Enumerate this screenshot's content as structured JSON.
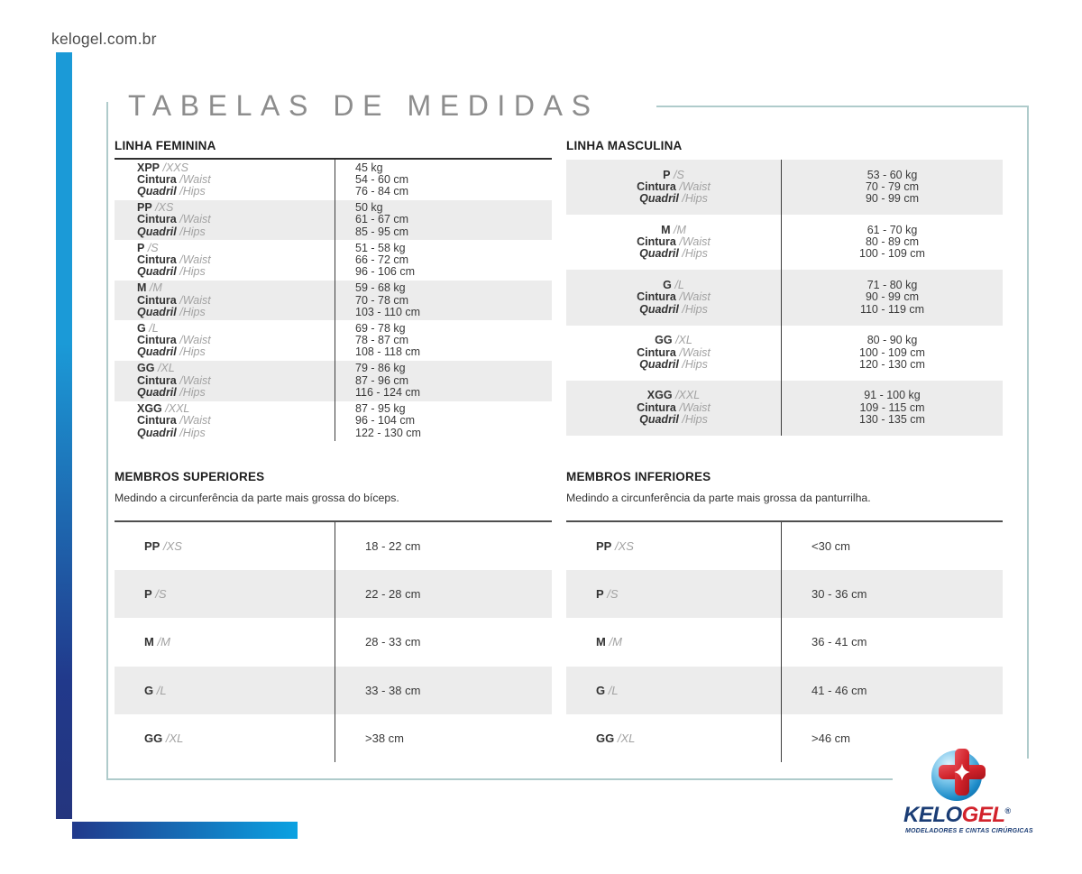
{
  "page": {
    "site_url": "kelogel.com.br",
    "title": "TABELAS DE MEDIDAS"
  },
  "measure_labels": {
    "waist_pt": "Cintura",
    "waist_en": "/Waist",
    "hips_pt": "Quadril",
    "hips_en": "/Hips"
  },
  "linha_feminina": {
    "header": "LINHA FEMININA",
    "rows": [
      {
        "size_pt": "XPP",
        "size_en": "/XXS",
        "weight": "45 kg",
        "waist": "54 - 60 cm",
        "hips": "76 - 84 cm"
      },
      {
        "size_pt": "PP",
        "size_en": "/XS",
        "weight": "50 kg",
        "waist": "61 - 67 cm",
        "hips": "85 - 95 cm"
      },
      {
        "size_pt": "P",
        "size_en": "/S",
        "weight": "51 - 58 kg",
        "waist": "66 - 72 cm",
        "hips": "96 - 106 cm"
      },
      {
        "size_pt": "M",
        "size_en": "/M",
        "weight": "59 - 68 kg",
        "waist": "70 - 78 cm",
        "hips": "103 - 110 cm"
      },
      {
        "size_pt": "G",
        "size_en": "/L",
        "weight": "69 - 78 kg",
        "waist": "78 - 87 cm",
        "hips": "108 - 118 cm"
      },
      {
        "size_pt": "GG",
        "size_en": "/XL",
        "weight": "79 - 86 kg",
        "waist": "87 - 96 cm",
        "hips": "116 - 124 cm"
      },
      {
        "size_pt": "XGG",
        "size_en": "/XXL",
        "weight": "87 - 95 kg",
        "waist": "96 - 104 cm",
        "hips": "122 - 130 cm"
      }
    ]
  },
  "linha_masculina": {
    "header": "LINHA MASCULINA",
    "rows": [
      {
        "size_pt": "P",
        "size_en": "/S",
        "weight": "53 - 60 kg",
        "waist": "70 - 79 cm",
        "hips": "90 - 99 cm"
      },
      {
        "size_pt": "M",
        "size_en": "/M",
        "weight": "61 - 70 kg",
        "waist": "80 - 89 cm",
        "hips": "100 - 109 cm"
      },
      {
        "size_pt": "G",
        "size_en": "/L",
        "weight": "71 - 80 kg",
        "waist": "90 - 99 cm",
        "hips": "110 - 119 cm"
      },
      {
        "size_pt": "GG",
        "size_en": "/XL",
        "weight": "80 - 90 kg",
        "waist": "100 - 109 cm",
        "hips": "120 - 130 cm"
      },
      {
        "size_pt": "XGG",
        "size_en": "/XXL",
        "weight": "91 - 100 kg",
        "waist": "109 - 115 cm",
        "hips": "130 - 135 cm"
      }
    ]
  },
  "membros_superiores": {
    "header": "MEMBROS SUPERIORES",
    "description": "Medindo a circunferência da parte mais grossa do bíceps.",
    "rows": [
      {
        "size_pt": "PP",
        "size_en": "/XS",
        "value": "18 - 22 cm"
      },
      {
        "size_pt": "P",
        "size_en": "/S",
        "value": "22 - 28 cm"
      },
      {
        "size_pt": "M",
        "size_en": "/M",
        "value": "28 - 33 cm"
      },
      {
        "size_pt": "G",
        "size_en": "/L",
        "value": "33 - 38 cm"
      },
      {
        "size_pt": "GG",
        "size_en": "/XL",
        "value": ">38 cm"
      }
    ]
  },
  "membros_inferiores": {
    "header": "MEMBROS INFERIORES",
    "description": "Medindo a circunferência da parte mais grossa da panturrilha.",
    "rows": [
      {
        "size_pt": "PP",
        "size_en": "/XS",
        "value": "<30 cm"
      },
      {
        "size_pt": "P",
        "size_en": "/S",
        "value": "30 - 36 cm"
      },
      {
        "size_pt": "M",
        "size_en": "/M",
        "value": "36 - 41 cm"
      },
      {
        "size_pt": "G",
        "size_en": "/L",
        "value": "41 - 46 cm"
      },
      {
        "size_pt": "GG",
        "size_en": "/XL",
        "value": ">46 cm"
      }
    ]
  },
  "logo": {
    "brand_blue": "KELO",
    "brand_red": "GEL",
    "registered": "®",
    "tagline": "MODELADORES E CINTAS CIRÚRGICAS"
  },
  "colors": {
    "accent_blue": "#1B9AD7",
    "accent_navy": "#21398B",
    "frame_teal": "#AFCBCB",
    "row_gray": "#ECECEC",
    "title_gray": "#8D8D8D",
    "logo_navy": "#1B3D75",
    "logo_red": "#D2232C"
  }
}
